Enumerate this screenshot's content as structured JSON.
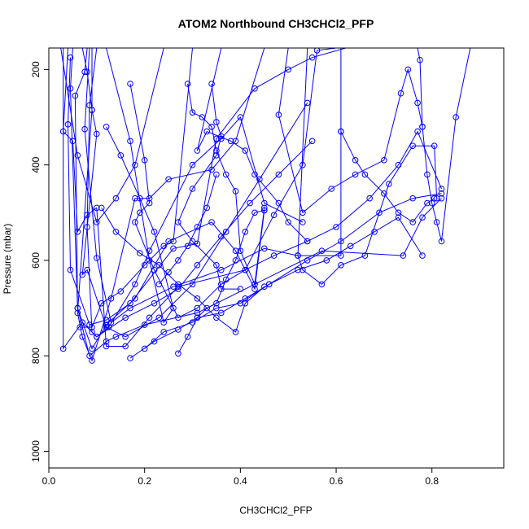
{
  "chart_data": {
    "type": "line",
    "title": "ATOM2 Northbound CH3CHCl2_PFP",
    "xlabel": "CH3CHCl2_PFP",
    "ylabel": "Pressure (mbar)",
    "xlim": [
      0,
      0.95
    ],
    "ylim": [
      1035,
      155
    ],
    "y_axis_reversed": true,
    "x_ticks": [
      "0.0",
      "0.2",
      "0.4",
      "0.6",
      "0.8"
    ],
    "y_ticks": [
      "200",
      "400",
      "600",
      "800",
      "1000"
    ],
    "grid": false,
    "legend": "none",
    "color": "#0000ff",
    "series": [
      {
        "x": [
          0.04,
          0.03,
          0.05,
          0.06,
          0.08,
          0.1,
          0.12,
          0.16,
          0.21,
          0.27,
          0.41,
          0.47,
          0.53,
          0.56,
          0.6
        ],
        "y": [
          155,
          330,
          350,
          540,
          505,
          490,
          780,
          780,
          720,
          655,
          620,
          505,
          400,
          160,
          155
        ]
      },
      {
        "x": [
          0.07,
          0.08,
          0.09,
          0.06,
          0.07,
          0.09,
          0.13,
          0.18,
          0.21,
          0.25,
          0.34,
          0.39,
          0.45
        ],
        "y": [
          155,
          205,
          285,
          710,
          760,
          810,
          680,
          470,
          470,
          430,
          410,
          350,
          155
        ]
      },
      {
        "x": [
          0.08,
          0.075,
          0.055,
          0.06,
          0.085,
          0.12,
          0.14,
          0.2,
          0.31,
          0.43,
          0.57,
          0.74,
          0.78,
          0.82
        ],
        "y": [
          155,
          205,
          255,
          700,
          800,
          770,
          760,
          735,
          710,
          650,
          580,
          590,
          510,
          470
        ]
      },
      {
        "x": [
          0.045,
          0.04,
          0.045,
          0.085,
          0.12,
          0.17,
          0.26,
          0.31,
          0.35,
          0.43,
          0.5,
          0.55,
          0.62
        ],
        "y": [
          175,
          315,
          620,
          735,
          725,
          690,
          575,
          565,
          345,
          240,
          200,
          175,
          155
        ]
      },
      {
        "x": [
          0.05,
          0.045,
          0.06,
          0.09,
          0.12,
          0.18,
          0.25,
          0.34,
          0.39,
          0.43,
          0.45
        ],
        "y": [
          155,
          240,
          700,
          785,
          735,
          680,
          560,
          520,
          580,
          660,
          495
        ]
      },
      {
        "x": [
          0.09,
          0.09,
          0.1,
          0.07,
          0.08,
          0.12,
          0.16,
          0.23,
          0.3,
          0.37,
          0.44,
          0.54
        ],
        "y": [
          155,
          285,
          335,
          630,
          620,
          740,
          760,
          720,
          650,
          540,
          430,
          270
        ]
      },
      {
        "x": [
          0.1,
          0.085,
          0.08,
          0.09,
          0.1,
          0.125,
          0.18,
          0.21,
          0.3,
          0.36,
          0.4,
          0.45,
          0.53
        ],
        "y": [
          155,
          275,
          530,
          750,
          760,
          740,
          650,
          580,
          400,
          345,
          300,
          480,
          520
        ]
      },
      {
        "x": [
          0.085,
          0.075,
          0.1,
          0.13,
          0.17,
          0.26,
          0.36,
          0.45,
          0.52,
          0.61,
          0.61
        ],
        "y": [
          155,
          325,
          595,
          730,
          700,
          655,
          620,
          575,
          590,
          590,
          330
        ]
      },
      {
        "x": [
          0.03,
          0.03,
          0.07,
          0.1,
          0.16,
          0.22,
          0.27,
          0.31,
          0.36,
          0.42,
          0.48,
          0.55
        ],
        "y": [
          155,
          785,
          730,
          760,
          720,
          690,
          660,
          610,
          550,
          480,
          420,
          350
        ]
      },
      {
        "x": [
          0.17,
          0.2,
          0.21,
          0.19,
          0.18,
          0.22,
          0.27,
          0.31,
          0.36,
          0.41,
          0.47,
          0.54
        ],
        "y": [
          230,
          390,
          480,
          500,
          520,
          620,
          720,
          700,
          650,
          620,
          590,
          560
        ]
      },
      {
        "x": [
          0.12,
          0.17,
          0.21,
          0.24,
          0.26,
          0.22,
          0.19,
          0.15,
          0.12
        ],
        "y": [
          155,
          350,
          600,
          730,
          700,
          540,
          470,
          380,
          320
        ]
      },
      {
        "x": [
          0.29,
          0.3,
          0.32,
          0.34,
          0.35,
          0.37,
          0.39,
          0.4,
          0.43,
          0.45
        ],
        "y": [
          230,
          290,
          300,
          320,
          370,
          420,
          455,
          580,
          650,
          490
        ]
      },
      {
        "x": [
          0.34,
          0.35,
          0.36,
          0.35,
          0.3,
          0.27,
          0.3,
          0.35,
          0.36,
          0.4
        ],
        "y": [
          230,
          310,
          340,
          380,
          450,
          520,
          560,
          610,
          660,
          660
        ]
      },
      {
        "x": [
          0.36,
          0.31,
          0.33,
          0.38,
          0.41,
          0.43,
          0.48,
          0.5,
          0.54,
          0.6,
          0.67,
          0.73,
          0.77,
          0.82
        ],
        "y": [
          155,
          370,
          330,
          350,
          370,
          420,
          480,
          520,
          560,
          530,
          470,
          400,
          330,
          450
        ]
      },
      {
        "x": [
          0.5,
          0.48,
          0.53,
          0.59,
          0.64,
          0.7,
          0.735,
          0.75,
          0.77,
          0.78
        ],
        "y": [
          155,
          295,
          500,
          450,
          420,
          390,
          250,
          200,
          270,
          320
        ]
      },
      {
        "x": [
          0.54,
          0.52,
          0.53,
          0.57,
          0.61,
          0.66,
          0.71,
          0.76,
          0.805,
          0.81
        ],
        "y": [
          155,
          590,
          620,
          650,
          610,
          590,
          440,
          360,
          360,
          470
        ]
      },
      {
        "x": [
          0.61,
          0.61,
          0.64,
          0.66,
          0.7,
          0.73,
          0.76,
          0.79,
          0.805
        ],
        "y": [
          155,
          330,
          390,
          420,
          460,
          500,
          520,
          480,
          470
        ]
      },
      {
        "x": [
          0.77,
          0.775,
          0.78,
          0.79,
          0.8,
          0.81,
          0.82,
          0.85,
          0.88
        ],
        "y": [
          155,
          180,
          320,
          420,
          480,
          520,
          560,
          300,
          155
        ]
      },
      {
        "x": [
          0.2,
          0.24,
          0.3,
          0.35,
          0.4,
          0.46,
          0.54,
          0.61,
          0.69,
          0.76,
          0.82
        ],
        "y": [
          785,
          750,
          730,
          700,
          690,
          650,
          600,
          560,
          500,
          470,
          460
        ]
      },
      {
        "x": [
          0.11,
          0.14,
          0.19,
          0.23,
          0.27,
          0.31,
          0.35,
          0.39,
          0.41,
          0.45
        ],
        "y": [
          490,
          540,
          585,
          610,
          650,
          680,
          720,
          750,
          690,
          655
        ]
      },
      {
        "x": [
          0.17,
          0.22,
          0.27,
          0.31,
          0.36,
          0.41,
          0.46,
          0.52,
          0.58,
          0.63,
          0.68,
          0.73,
          0.78
        ],
        "y": [
          805,
          770,
          745,
          720,
          710,
          680,
          650,
          620,
          600,
          570,
          540,
          510,
          590
        ]
      },
      {
        "x": [
          0.27,
          0.29,
          0.31,
          0.33,
          0.35,
          0.37,
          0.39,
          0.41,
          0.43,
          0.45
        ],
        "y": [
          795,
          760,
          720,
          700,
          690,
          640,
          600,
          540,
          500,
          495
        ]
      },
      {
        "x": [
          0.23,
          0.25,
          0.27,
          0.29,
          0.31,
          0.33,
          0.35
        ],
        "y": [
          650,
          625,
          600,
          570,
          530,
          490,
          420
        ]
      },
      {
        "x": [
          0.065,
          0.09,
          0.11,
          0.15,
          0.2,
          0.24,
          0.26,
          0.3
        ],
        "y": [
          740,
          740,
          690,
          665,
          610,
          570,
          560,
          155
        ]
      },
      {
        "x": [
          0.025,
          0.06,
          0.1,
          0.14,
          0.18,
          0.24
        ],
        "y": [
          155,
          380,
          520,
          470,
          400,
          155
        ]
      }
    ]
  }
}
